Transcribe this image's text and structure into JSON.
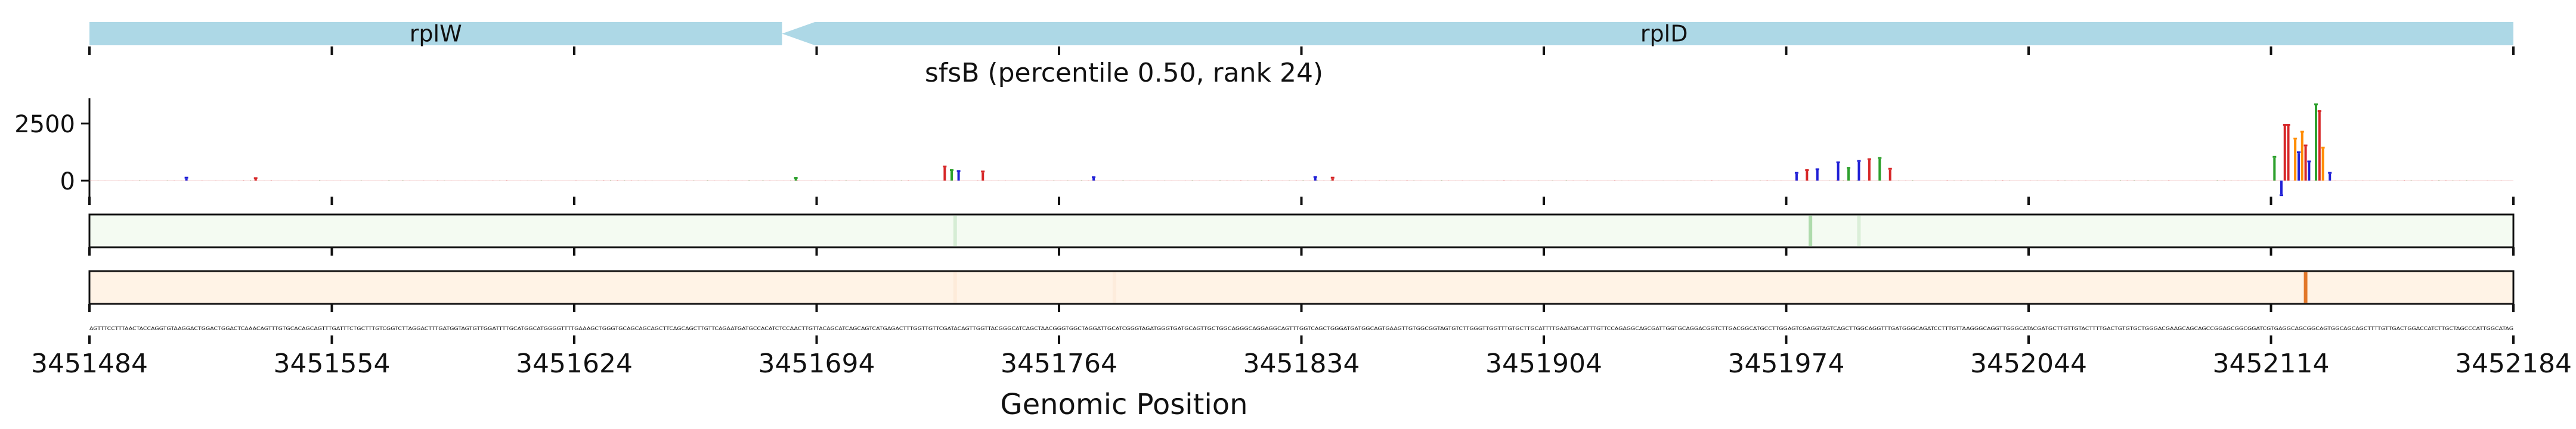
{
  "chart_data": {
    "type": "genome-track",
    "title": "sfsB (percentile 0.50, rank 24)",
    "xlabel": "Genomic Position",
    "xlim": [
      3451484,
      3452184
    ],
    "x_ticks": [
      "3451484",
      "3451554",
      "3451624",
      "3451694",
      "3451764",
      "3451834",
      "3451904",
      "3451974",
      "3452044",
      "3452114",
      "3452184"
    ],
    "genes": [
      {
        "name": "rplW",
        "start": 3451484,
        "end": 3451684,
        "strand": "+"
      },
      {
        "name": "rplD",
        "start": 3451684,
        "end": 3452184,
        "strand": "-"
      }
    ],
    "signal": {
      "ylim": [
        -700,
        3600
      ],
      "y_ticks": [
        "2500",
        "0"
      ],
      "y_tick_values": [
        2500,
        0
      ],
      "peaks": [
        {
          "x": 3451512,
          "value": 90,
          "color": "#1f1fd6"
        },
        {
          "x": 3451532,
          "value": 70,
          "color": "#d62728"
        },
        {
          "x": 3451688,
          "value": 80,
          "color": "#2ca02c"
        },
        {
          "x": 3451731,
          "value": 580,
          "color": "#d62728"
        },
        {
          "x": 3451733,
          "value": 420,
          "color": "#2ca02c"
        },
        {
          "x": 3451735,
          "value": 380,
          "color": "#1f1fd6"
        },
        {
          "x": 3451742,
          "value": 360,
          "color": "#d62728"
        },
        {
          "x": 3451774,
          "value": 110,
          "color": "#1f1fd6"
        },
        {
          "x": 3451838,
          "value": 120,
          "color": "#1f1fd6"
        },
        {
          "x": 3451843,
          "value": 90,
          "color": "#d62728"
        },
        {
          "x": 3451977,
          "value": 300,
          "color": "#1f1fd6"
        },
        {
          "x": 3451980,
          "value": 420,
          "color": "#d62728"
        },
        {
          "x": 3451983,
          "value": 460,
          "color": "#1f1fd6"
        },
        {
          "x": 3451989,
          "value": 760,
          "color": "#1f1fd6"
        },
        {
          "x": 3451992,
          "value": 520,
          "color": "#2ca02c"
        },
        {
          "x": 3451995,
          "value": 820,
          "color": "#1f1fd6"
        },
        {
          "x": 3451998,
          "value": 900,
          "color": "#d62728"
        },
        {
          "x": 3452001,
          "value": 950,
          "color": "#2ca02c"
        },
        {
          "x": 3452004,
          "value": 480,
          "color": "#d62728"
        },
        {
          "x": 3452115,
          "value": 1000,
          "color": "#2ca02c"
        },
        {
          "x": 3452117,
          "value": -600,
          "color": "#1f1fd6"
        },
        {
          "x": 3452118,
          "value": 2400,
          "color": "#d62728"
        },
        {
          "x": 3452119,
          "value": 2400,
          "color": "#d62728"
        },
        {
          "x": 3452121,
          "value": 1800,
          "color": "#ff8c00"
        },
        {
          "x": 3452122,
          "value": 1200,
          "color": "#1f1fd6"
        },
        {
          "x": 3452123,
          "value": 2100,
          "color": "#ff8c00"
        },
        {
          "x": 3452124,
          "value": 1500,
          "color": "#d62728"
        },
        {
          "x": 3452125,
          "value": 800,
          "color": "#1f1fd6"
        },
        {
          "x": 3452127,
          "value": 3300,
          "color": "#2ca02c"
        },
        {
          "x": 3452128,
          "value": 3000,
          "color": "#d62728"
        },
        {
          "x": 3452129,
          "value": 1400,
          "color": "#ff8c00"
        },
        {
          "x": 3452131,
          "value": 300,
          "color": "#1f1fd6"
        }
      ]
    },
    "track_green": {
      "color": "#2ca02c",
      "marks": [
        {
          "x": 3451734,
          "alpha": 0.15
        },
        {
          "x": 3451981,
          "alpha": 0.35
        },
        {
          "x": 3451995,
          "alpha": 0.12
        }
      ]
    },
    "track_orange": {
      "color": "#e07020",
      "marks": [
        {
          "x": 3452124,
          "alpha": 0.95
        },
        {
          "x": 3451734,
          "alpha": 0.06
        },
        {
          "x": 3451780,
          "alpha": 0.05
        }
      ]
    },
    "sequence": "AGTTTCCTTTAACTACCAGGTGTAAGGACTGGACTGGACTCAAACAGTTTGTGCACAGCAGTTTGATTTCTGCTTTGTCGGTCTTAGGACTTTGATGGTAGTGTTGGATTTTGCATGGCATGGGGTTTTGAAAGCTGGGTGCAGCAGCAGCTTCAGCAGCTTGTTCAGAATGATGCCACATCTCCAACTTGTTACAGCATCAGCAGTCATGAGACTTTGGTTGTTCGATACAGTTGGTTACGGGCATCAGCTAACGGGTGGCTAGGATTGCATCGGGTAGATGGGTGATGCAGTTGCTGGCAGGGCAGGAGGCAGTTTGGTCAGCTGGGATGATGGCAGTGAAGTTGTGGCGGTAGTGTCTTGGGTTGGTTTGTGCTTGCATTTTGAATGACATTTGTTCCAGAGGCAGCGATTGGTGCAGGACGGTCTTGACGGCATGCCTTGGAGTCGAGGTAGTCAGCTTGGCAGGTTTGATGGGCAGATCCTTTGTTAAGGGCAGGTTGGGCATACGATGCTTGTTGTACTTTTGACTGTGTGCTGGGACGAAGCAGCAGCCGGAGCGGCGGATCGTGAGGCAGCGGCAGTGGCAGCAGCTTTTGTTGACTGGACCATCTTGCTAGCCCATTGGCATAG"
  }
}
